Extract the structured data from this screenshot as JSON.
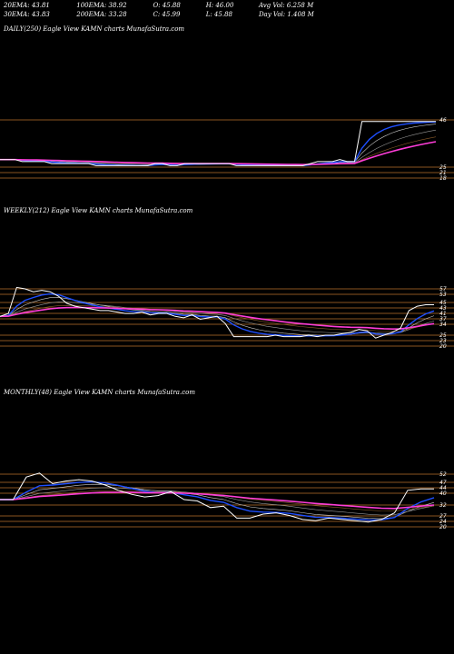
{
  "header": {
    "row1": [
      {
        "label": "20EMA: 43.81"
      },
      {
        "label": "100EMA: 38.92"
      },
      {
        "label": "O: 45.88"
      },
      {
        "label": "H: 46.00"
      },
      {
        "label": "Avg Vol: 6.258  M"
      }
    ],
    "row2": [
      {
        "label": "30EMA: 43.83"
      },
      {
        "label": "200EMA: 33.28"
      },
      {
        "label": "C: 45.99"
      },
      {
        "label": "L: 45.88"
      },
      {
        "label": "Day Vol: 1.408  M"
      }
    ]
  },
  "colors": {
    "background": "#000000",
    "price": "#ffffff",
    "ema_fast": "#1e4fff",
    "ema_slow": "#ff3dd8",
    "grid": "#b8702a",
    "level_text": "#ffffff"
  },
  "chart_data": [
    {
      "type": "line",
      "title": "DAILY(250) Eagle  View  KAMN  charts MunafaSutra.com",
      "levels": [
        "46",
        "25",
        "21",
        "18"
      ],
      "series": [
        {
          "values": [
            27,
            27,
            27,
            26,
            26,
            26,
            26,
            25,
            25,
            25,
            25,
            25,
            25,
            24,
            24,
            24,
            24,
            24,
            24,
            24,
            24,
            25,
            25,
            24,
            24,
            25,
            25,
            25,
            25,
            25,
            25,
            25,
            24,
            24,
            24,
            24,
            24,
            24,
            24,
            24,
            24,
            24,
            25,
            26,
            26,
            26,
            27,
            26,
            26,
            46,
            46,
            46,
            46,
            46,
            46,
            46,
            46,
            46,
            46,
            46
          ]
        }
      ]
    },
    {
      "type": "line",
      "title": "WEEKLY(212) Eagle  View  KAMN  charts MunafaSutra.com",
      "levels": [
        "57",
        "53",
        "45",
        "43",
        "41",
        "37",
        "34",
        "25",
        "23",
        "20"
      ],
      "series": [
        {
          "values": [
            38,
            40,
            58,
            57,
            55,
            56,
            55,
            52,
            47,
            45,
            44,
            43,
            42,
            42,
            41,
            40,
            40,
            41,
            39,
            40,
            40,
            38,
            37,
            39,
            36,
            37,
            38,
            33,
            24,
            24,
            24,
            24,
            24,
            25,
            24,
            24,
            24,
            25,
            24,
            25,
            25,
            26,
            27,
            29,
            28,
            23,
            25,
            27,
            30,
            42,
            45,
            46,
            46
          ]
        }
      ]
    },
    {
      "type": "line",
      "title": "MONTHLY(48) Eagle  View  KAMN  charts MunafaSutra.com",
      "levels": [
        "52",
        "47",
        "44",
        "40",
        "32",
        "27",
        "24",
        "20"
      ],
      "series": [
        {
          "values": [
            38,
            38,
            55,
            58,
            50,
            52,
            53,
            52,
            49,
            45,
            42,
            40,
            41,
            44,
            38,
            37,
            32,
            33,
            24,
            24,
            27,
            28,
            26,
            23,
            22,
            24,
            23,
            22,
            21,
            23,
            28,
            45,
            46,
            46
          ]
        }
      ]
    }
  ]
}
